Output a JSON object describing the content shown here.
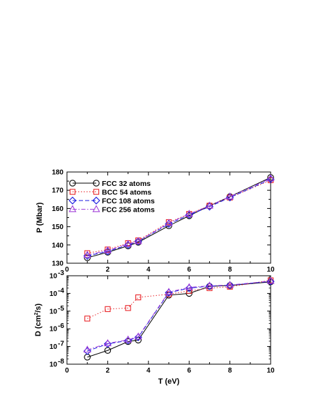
{
  "chart_data": [
    {
      "type": "line",
      "title": "",
      "xlabel": "",
      "ylabel": "P (Mbar)",
      "xlim": [
        0,
        10
      ],
      "ylim": [
        130,
        180
      ],
      "xticks": [
        "0",
        "2",
        "4",
        "6",
        "8",
        "10"
      ],
      "yticks": [
        "130",
        "140",
        "150",
        "160",
        "170",
        "180"
      ],
      "legend_position": "top-left",
      "grid": false,
      "series": [
        {
          "name": "FCC 32 atoms",
          "color": "#000000",
          "marker": "circle",
          "dash": "solid",
          "x": [
            1,
            2,
            3,
            3.5,
            5,
            6,
            7,
            8,
            10
          ],
          "y": [
            133.0,
            136.0,
            139.5,
            141.5,
            150.5,
            156.0,
            161.5,
            166.5,
            177.0
          ]
        },
        {
          "name": "BCC 54 atoms",
          "color": "#e8262a",
          "marker": "square",
          "dash": "dotted",
          "x": [
            1,
            2,
            3,
            3.5,
            5,
            6,
            7,
            8,
            10
          ],
          "y": [
            135.5,
            137.5,
            141.0,
            142.5,
            152.5,
            157.0,
            161.5,
            166.0,
            175.5
          ]
        },
        {
          "name": "FCC 108 atoms",
          "color": "#1a1ae0",
          "marker": "diamond",
          "dash": "dashed",
          "x": [
            1,
            2,
            3,
            3.5,
            5,
            6,
            7,
            8,
            10
          ],
          "y": [
            134.0,
            136.5,
            140.0,
            142.0,
            151.5,
            156.5,
            161.0,
            166.0,
            176.0
          ]
        },
        {
          "name": "FCC 256 atoms",
          "color": "#a03fd8",
          "marker": "triangle",
          "dash": "dashdot",
          "x": [
            1,
            2,
            3,
            3.5,
            5,
            6,
            7,
            8,
            10
          ],
          "y": [
            134.5,
            137.0,
            140.5,
            142.0,
            152.0,
            157.0,
            161.5,
            166.5,
            176.5
          ]
        }
      ]
    },
    {
      "type": "line",
      "title": "",
      "xlabel": "T (eV)",
      "ylabel_prefix": "D (cm",
      "ylabel_sup": "2",
      "ylabel_suffix": "/s)",
      "xlim": [
        0,
        10
      ],
      "yscale": "log",
      "ylim": [
        1e-08,
        0.001
      ],
      "xticks": [
        "0",
        "2",
        "4",
        "6",
        "8",
        "10"
      ],
      "yticks_base": "10",
      "yticks_exp": [
        "-8",
        "-7",
        "-6",
        "-5",
        "-4",
        "-3"
      ],
      "grid": false,
      "series": [
        {
          "name": "FCC 32 atoms",
          "color": "#000000",
          "marker": "circle",
          "dash": "solid",
          "x": [
            1,
            2,
            3,
            3.5,
            5,
            6,
            7,
            8,
            10
          ],
          "y": [
            2.5e-08,
            6e-08,
            1.9e-07,
            2.3e-07,
            8e-05,
            0.0001,
            0.00025,
            0.00028,
            0.00045
          ]
        },
        {
          "name": "BCC 54 atoms",
          "color": "#e8262a",
          "marker": "square",
          "dash": "dotted",
          "x": [
            1,
            2,
            3,
            3.5,
            5,
            6,
            7,
            8,
            10
          ],
          "y": [
            3.8e-06,
            1.3e-05,
            1.5e-05,
            6e-05,
            9e-05,
            0.00014,
            0.0002,
            0.00024,
            0.00055
          ]
        },
        {
          "name": "FCC 108 atoms",
          "color": "#1a1ae0",
          "marker": "diamond",
          "dash": "dashed",
          "x": [
            1,
            2,
            3,
            3.5,
            5,
            6,
            7,
            8,
            10
          ],
          "y": [
            5.5e-08,
            1.4e-07,
            2.2e-07,
            3.3e-07,
            0.00011,
            0.0002,
            0.00026,
            0.00029,
            0.00048
          ]
        },
        {
          "name": "FCC 256 atoms",
          "color": "#a03fd8",
          "marker": "triangle",
          "dash": "dashdot",
          "x": [
            1,
            2,
            3,
            3.5,
            5,
            6,
            7,
            8,
            10
          ],
          "y": [
            6.5e-08,
            1.5e-07,
            2.4e-07,
            3.6e-07,
            0.00012,
            0.00022,
            0.00027,
            0.0003,
            0.0005
          ]
        }
      ]
    }
  ]
}
